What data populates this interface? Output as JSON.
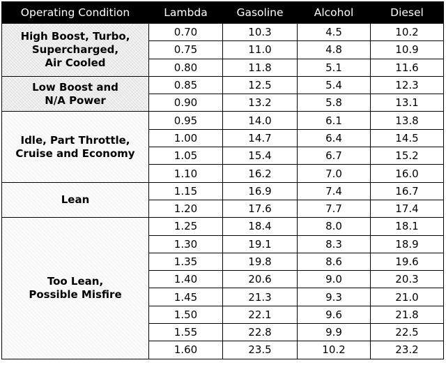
{
  "header": [
    "Operating Condition",
    "Lambda",
    "Gasoline",
    "Alcohol",
    "Diesel"
  ],
  "groups": [
    {
      "condition_lines": [
        "High Boost, Turbo,",
        "Supercharged,",
        "Air Cooled"
      ],
      "rows": [
        [
          "0.70",
          "10.3",
          "4.5",
          "10.2"
        ],
        [
          "0.75",
          "11.0",
          "4.8",
          "10.9"
        ],
        [
          "0.80",
          "11.8",
          "5.1",
          "11.6"
        ]
      ]
    },
    {
      "condition_lines": [
        "Low Boost and",
        "N/A Power"
      ],
      "rows": [
        [
          "0.85",
          "12.5",
          "5.4",
          "12.3"
        ],
        [
          "0.90",
          "13.2",
          "5.8",
          "13.1"
        ]
      ]
    },
    {
      "condition_lines": [
        "Idle, Part Throttle,",
        "Cruise and Economy"
      ],
      "rows": [
        [
          "0.95",
          "14.0",
          "6.1",
          "13.8"
        ],
        [
          "1.00",
          "14.7",
          "6.4",
          "14.5"
        ],
        [
          "1.05",
          "15.4",
          "6.7",
          "15.2"
        ],
        [
          "1.10",
          "16.2",
          "7.0",
          "16.0"
        ]
      ]
    },
    {
      "condition_lines": [
        "Lean"
      ],
      "rows": [
        [
          "1.15",
          "16.9",
          "7.4",
          "16.7"
        ],
        [
          "1.20",
          "17.6",
          "7.7",
          "17.4"
        ]
      ]
    },
    {
      "condition_lines": [
        "Too Lean,",
        "Possible Misfire"
      ],
      "rows": [
        [
          "1.25",
          "18.4",
          "8.0",
          "18.1"
        ],
        [
          "1.30",
          "19.1",
          "8.3",
          "18.9"
        ],
        [
          "1.35",
          "19.8",
          "8.6",
          "19.6"
        ],
        [
          "1.40",
          "20.6",
          "9.0",
          "20.3"
        ],
        [
          "1.45",
          "21.3",
          "9.3",
          "21.0"
        ],
        [
          "1.50",
          "22.1",
          "9.6",
          "21.8"
        ],
        [
          "1.55",
          "22.8",
          "9.9",
          "22.5"
        ],
        [
          "1.60",
          "23.5",
          "10.2",
          "23.2"
        ]
      ]
    }
  ]
}
